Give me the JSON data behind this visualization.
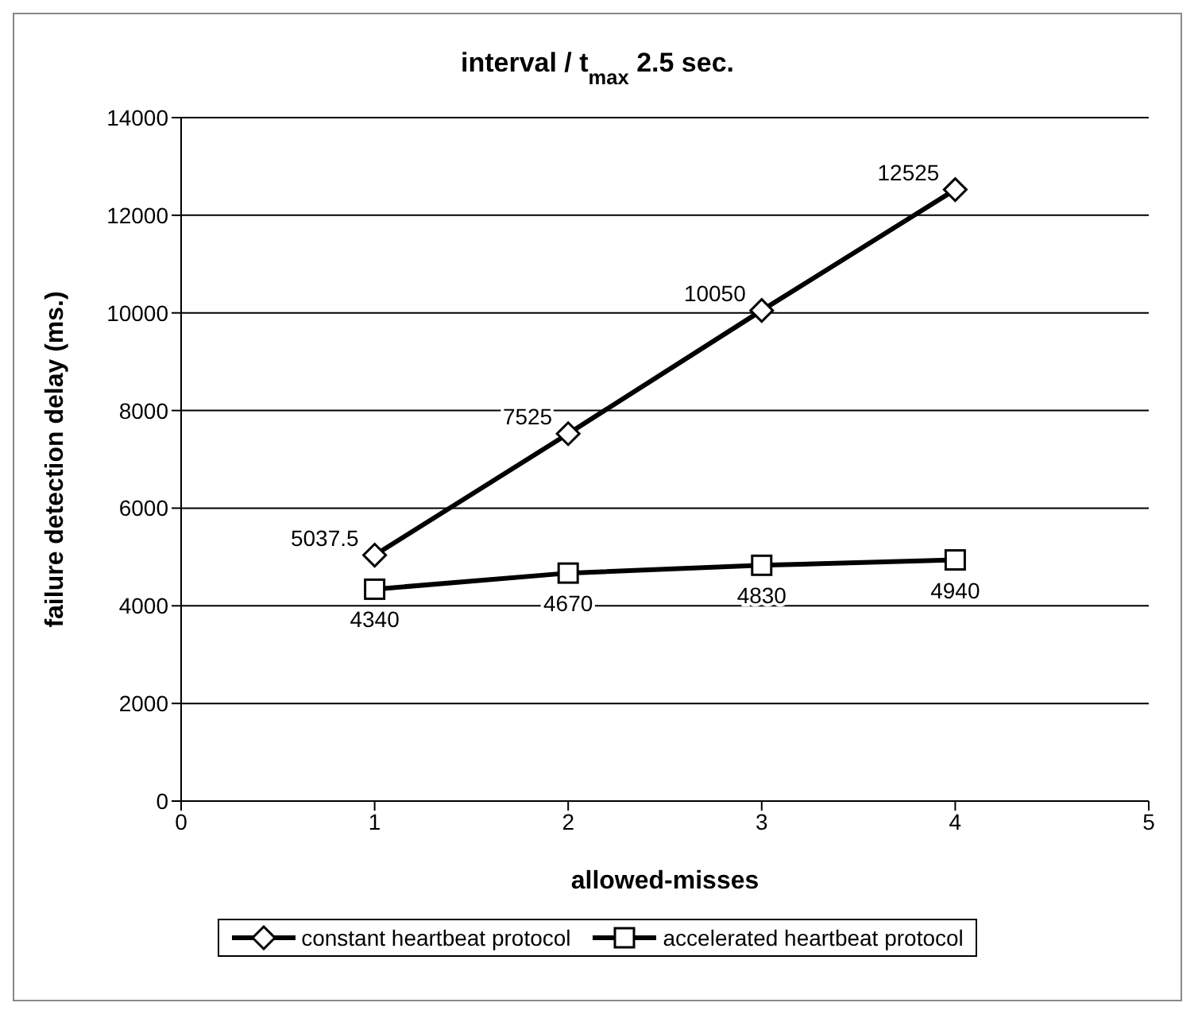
{
  "chart_data": {
    "type": "line",
    "title": "interval / t$_{max}$ 2.5 sec.",
    "xlabel": "allowed-misses",
    "ylabel": "failure detection delay (ms.)",
    "x": [
      1,
      2,
      3,
      4
    ],
    "series": [
      {
        "name": "constant heartbeat protocol",
        "color": "#000000",
        "marker": "diamond",
        "values": [
          5037.5,
          7525,
          10050,
          12525
        ]
      },
      {
        "name": "accelerated heartbeat protocol",
        "color": "#000000",
        "marker": "square",
        "values": [
          4340,
          4670,
          4830,
          4940
        ]
      }
    ],
    "xlim": [
      0,
      5
    ],
    "xticks": [
      0,
      1,
      2,
      3,
      4,
      5
    ],
    "ylim": [
      0,
      14000
    ],
    "yticks": [
      0,
      2000,
      4000,
      6000,
      8000,
      10000,
      12000,
      14000
    ],
    "grid": "y",
    "legend": "bottom",
    "data_labels": true,
    "line_style": "solid"
  }
}
